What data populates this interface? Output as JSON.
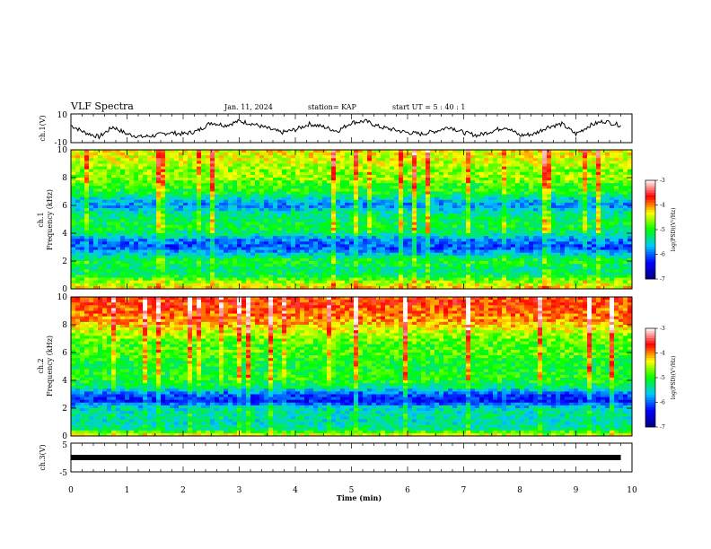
{
  "header": {
    "title": "VLF Spectra",
    "date": "Jan. 11, 2024",
    "station": "station= KAP",
    "start": "start  UT =   5 : 40 : 1"
  },
  "chart_data": [
    {
      "type": "line",
      "name": "ch1-voltage",
      "ylabel": "ch.1(V)",
      "ylim": [
        -10,
        10
      ],
      "yticks": [
        "10",
        "-10"
      ],
      "x": [
        0,
        0.25,
        0.5,
        0.75,
        1.0,
        1.25,
        1.5,
        1.75,
        2.0,
        2.25,
        2.5,
        2.75,
        3.0,
        3.25,
        3.5,
        3.75,
        4.0,
        4.25,
        4.5,
        4.75,
        5.0,
        5.25,
        5.5,
        5.75,
        6.0,
        6.25,
        6.5,
        6.75,
        7.0,
        7.25,
        7.5,
        7.75,
        8.0,
        8.25,
        8.5,
        8.75,
        9.0,
        9.25,
        9.5,
        9.8
      ],
      "values": [
        2,
        -3,
        -6,
        1,
        -4,
        -6,
        -5,
        -3,
        -4,
        -2,
        4,
        2,
        5,
        3,
        0,
        -3,
        -1,
        3,
        1,
        -2,
        4,
        5,
        1,
        -1,
        -3,
        -4,
        -2,
        1,
        -3,
        -5,
        -2,
        1,
        -5,
        -4,
        1,
        3,
        -4,
        2,
        5,
        2
      ]
    },
    {
      "type": "heatmap",
      "name": "ch1-spectrogram",
      "ylabel_line1": "ch.1",
      "ylabel_line2": "Frequency (kHz)",
      "ylim": [
        0,
        10
      ],
      "yticks": [
        "0",
        "2",
        "4",
        "6",
        "8",
        "10"
      ],
      "colorbar": {
        "label": "log(PSD)(V²/Hz)",
        "range": [
          -7,
          -3
        ],
        "ticks": [
          "-3",
          "-4",
          "-5",
          "-6",
          "-7"
        ]
      },
      "band_profile_log_psd": [
        {
          "f_khz": 0.0,
          "v": -4.2
        },
        {
          "f_khz": 0.5,
          "v": -4.6
        },
        {
          "f_khz": 1.0,
          "v": -5.2
        },
        {
          "f_khz": 1.5,
          "v": -5.3
        },
        {
          "f_khz": 2.0,
          "v": -5.0
        },
        {
          "f_khz": 2.5,
          "v": -5.6
        },
        {
          "f_khz": 3.0,
          "v": -6.1
        },
        {
          "f_khz": 3.5,
          "v": -5.9
        },
        {
          "f_khz": 4.0,
          "v": -5.3
        },
        {
          "f_khz": 4.5,
          "v": -5.1
        },
        {
          "f_khz": 5.0,
          "v": -5.2
        },
        {
          "f_khz": 5.5,
          "v": -5.4
        },
        {
          "f_khz": 6.0,
          "v": -5.9
        },
        {
          "f_khz": 6.5,
          "v": -5.5
        },
        {
          "f_khz": 7.0,
          "v": -5.0
        },
        {
          "f_khz": 7.5,
          "v": -4.9
        },
        {
          "f_khz": 8.0,
          "v": -4.6
        },
        {
          "f_khz": 8.5,
          "v": -4.7
        },
        {
          "f_khz": 9.0,
          "v": -4.5
        },
        {
          "f_khz": 9.5,
          "v": -4.4
        },
        {
          "f_khz": 10.0,
          "v": -4.3
        }
      ]
    },
    {
      "type": "heatmap",
      "name": "ch2-spectrogram",
      "ylabel_line1": "ch.2",
      "ylabel_line2": "Frequency (kHz)",
      "ylim": [
        0,
        10
      ],
      "yticks": [
        "0",
        "2",
        "4",
        "6",
        "8",
        "10"
      ],
      "colorbar": {
        "label": "log(PSD)(V²/Hz)",
        "range": [
          -7,
          -3
        ],
        "ticks": [
          "-3",
          "-4",
          "-5",
          "-6",
          "-7"
        ]
      },
      "band_profile_log_psd": [
        {
          "f_khz": 0.0,
          "v": -4.3
        },
        {
          "f_khz": 0.5,
          "v": -5.3
        },
        {
          "f_khz": 1.0,
          "v": -5.5
        },
        {
          "f_khz": 1.5,
          "v": -5.4
        },
        {
          "f_khz": 2.0,
          "v": -5.5
        },
        {
          "f_khz": 2.5,
          "v": -6.3
        },
        {
          "f_khz": 3.0,
          "v": -6.1
        },
        {
          "f_khz": 3.5,
          "v": -5.3
        },
        {
          "f_khz": 4.0,
          "v": -5.0
        },
        {
          "f_khz": 4.5,
          "v": -5.0
        },
        {
          "f_khz": 5.0,
          "v": -5.1
        },
        {
          "f_khz": 5.5,
          "v": -5.0
        },
        {
          "f_khz": 6.0,
          "v": -4.8
        },
        {
          "f_khz": 6.5,
          "v": -4.9
        },
        {
          "f_khz": 7.0,
          "v": -4.7
        },
        {
          "f_khz": 7.5,
          "v": -4.5
        },
        {
          "f_khz": 8.0,
          "v": -4.2
        },
        {
          "f_khz": 8.5,
          "v": -4.0
        },
        {
          "f_khz": 9.0,
          "v": -3.9
        },
        {
          "f_khz": 9.5,
          "v": -3.8
        },
        {
          "f_khz": 10.0,
          "v": -3.8
        }
      ]
    },
    {
      "type": "line",
      "name": "ch3-voltage",
      "ylabel": "ch.3(V)",
      "ylim": [
        -5,
        5
      ],
      "yticks": [
        "5",
        "-5"
      ],
      "x": [
        0,
        9.8
      ],
      "values": [
        0,
        0
      ]
    }
  ],
  "xaxis": {
    "label": "Time (min)",
    "range": [
      0,
      10
    ],
    "ticks": [
      "0",
      "1",
      "2",
      "3",
      "4",
      "5",
      "6",
      "7",
      "8",
      "9",
      "10"
    ]
  },
  "colors": {
    "colormap": [
      "#000080",
      "#0000ff",
      "#00c8ff",
      "#00ff00",
      "#ffff00",
      "#ff0000",
      "#ffffff"
    ]
  }
}
